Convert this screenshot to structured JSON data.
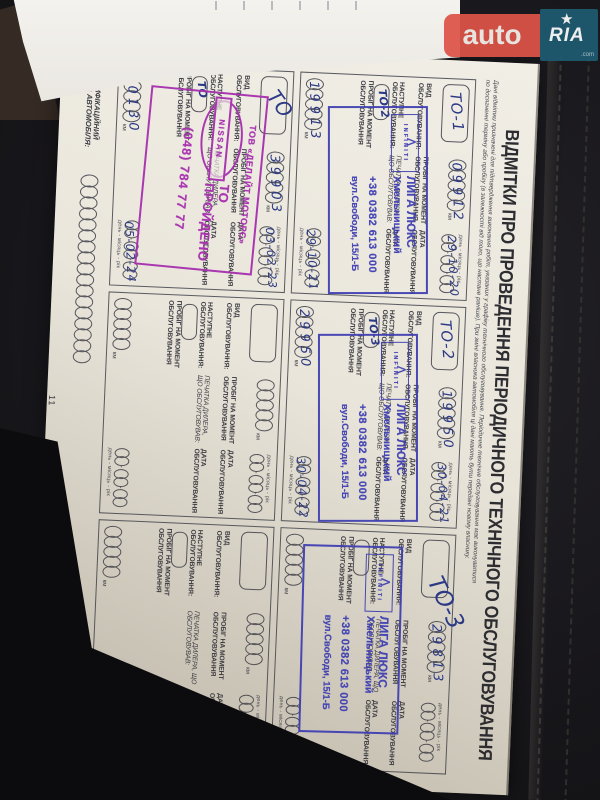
{
  "watermark": {
    "auto": "auto",
    "ria": "RIA",
    "com": ".com"
  },
  "page": {
    "title": "ВІДМІТКИ ПРО ПРОВЕДЕННЯ ПЕРІОДИЧНОГО ТЕХНІЧНОГО ОБСЛУГОВУВАННЯ",
    "intro_line1": "Дані відмітки призначені для підтвердження виконання робіт, указаних у графіку технічного обслуговування. Періодичне технічне обслуговування має виконуватися",
    "intro_line2": "по досягненні терміну або пробігу (в залежності від того, що настане раніше). При зміні власника автомобіля ці дані мають бути передані новому власнику.",
    "vin_label": "ІДЕНТИФІКАЦІЙНИЙ НОМЕР АВТОМОБІЛЯ:",
    "page_number": "11"
  },
  "labels": {
    "vid": "ВИД ОБСЛУГОВУВАННЯ:",
    "probig": "ПРОБІГ НА МОМЕНТ ОБСЛУГОВУВАННЯ",
    "data": "ДАТА ОБСЛУГОВУВАННЯ",
    "nastupne": "НАСТУПНЕ ОБСЛУГОВУВАННЯ:",
    "pechatka": "ПЕЧАТКА ДИЛЕРА, ЩО ОБСЛУГОВУВАВ:",
    "km": "км",
    "dmr": "день - місяць - рік"
  },
  "blocks": [
    {
      "vid": "ТО-1",
      "mileage": "09912",
      "date": "29-10-20",
      "next_vid": "ТО-2",
      "next_mileage": "19913",
      "next_date": "29-10-21"
    },
    {
      "vid": "ТО",
      "mileage": "39903",
      "date": "03-02-23",
      "next_vid": "ТО",
      "next_mileage": "40130",
      "next_date": "05-02-24"
    },
    {
      "vid": "ТО-2",
      "mileage": "19950",
      "date": "30-04-21",
      "next_vid": "ТО-3",
      "next_mileage": "29950",
      "next_date": "30-04-22"
    },
    {
      "vid": "",
      "mileage": "",
      "date": "",
      "next_vid": "",
      "next_mileage": "",
      "next_date": ""
    },
    {
      "vid": "ТО-3",
      "mileage": "29813",
      "date": "",
      "next_vid": "",
      "next_mileage": "",
      "next_date": ""
    },
    {
      "vid": "",
      "mileage": "",
      "date": "",
      "next_vid": "",
      "next_mileage": "",
      "next_date": ""
    }
  ],
  "stamps": {
    "liga": {
      "brand": "INFINITI",
      "name": "ЛИГА ЛЮКС",
      "city": "Хмельницький",
      "phone": "+38 0382 613 000",
      "address": "вул.Свободи, 15/1-Б"
    },
    "nissan": {
      "logo": "NISSAN",
      "company": "ТОВ «ДЕЛАЙТ МОТОРС»",
      "status": "ТО ПРОЙДЕНО",
      "phone": "(048) 784 77 77"
    }
  }
}
